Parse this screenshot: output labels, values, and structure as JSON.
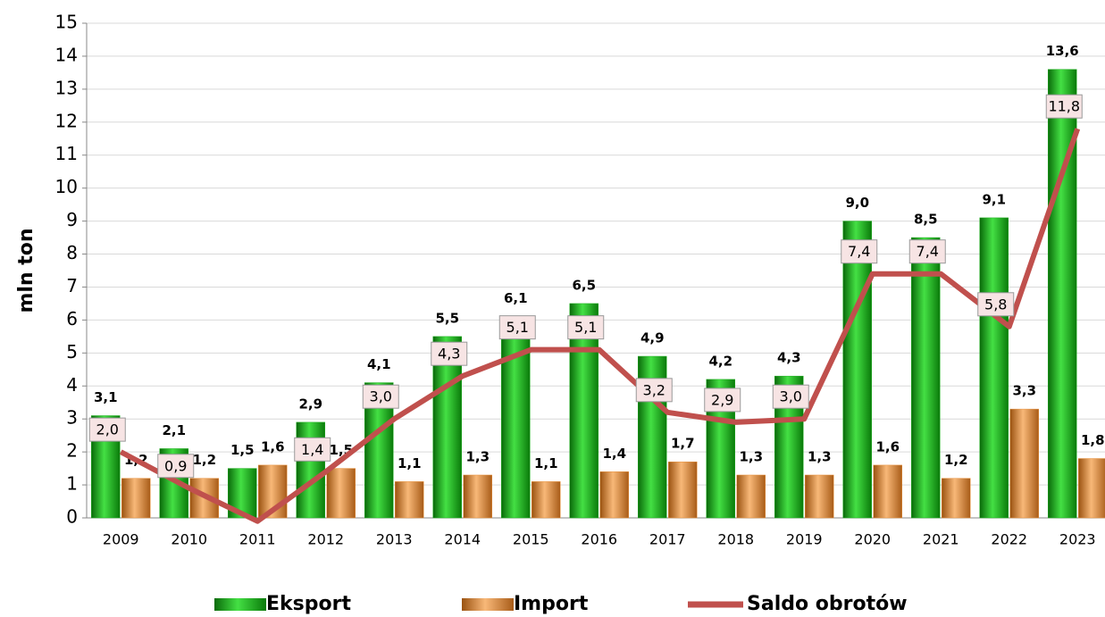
{
  "chart_data": {
    "type": "bar",
    "y_label": "mln ton",
    "categories": [
      "2009",
      "2010",
      "2011",
      "2012",
      "2013",
      "2014",
      "2015",
      "2016",
      "2017",
      "2018",
      "2019",
      "2020",
      "2021",
      "2022",
      "2023"
    ],
    "series": [
      {
        "name": "Eksport",
        "type": "bar",
        "color": "#22b022",
        "values": [
          3.1,
          2.1,
          1.5,
          2.9,
          4.1,
          5.5,
          6.1,
          6.5,
          4.9,
          4.2,
          4.3,
          9.0,
          8.5,
          9.1,
          13.6
        ],
        "value_labels": [
          "3,1",
          "2,1",
          "1,5",
          "2,9",
          "4,1",
          "5,5",
          "6,1",
          "6,5",
          "4,9",
          "4,2",
          "4,3",
          "9,0",
          "8,5",
          "9,1",
          "13,6"
        ]
      },
      {
        "name": "Import",
        "type": "bar",
        "color": "#e8903a",
        "values": [
          1.2,
          1.2,
          1.6,
          1.5,
          1.1,
          1.3,
          1.1,
          1.4,
          1.7,
          1.3,
          1.3,
          1.6,
          1.2,
          3.3,
          1.8
        ],
        "value_labels": [
          "1,2",
          "1,2",
          "1,6",
          "1,5",
          "1,1",
          "1,3",
          "1,1",
          "1,4",
          "1,7",
          "1,3",
          "1,3",
          "1,6",
          "1,2",
          "3,3",
          "1,8"
        ]
      },
      {
        "name": "Saldo obrotów",
        "type": "line",
        "color": "#c0504d",
        "values": [
          2.0,
          0.9,
          -0.1,
          1.4,
          3.0,
          4.3,
          5.1,
          5.1,
          3.2,
          2.9,
          3.0,
          7.4,
          7.4,
          5.8,
          11.8
        ],
        "value_labels": [
          "2,0",
          "0,9",
          null,
          "1,4",
          "3,0",
          "4,3",
          "5,1",
          "5,1",
          "3,2",
          "2,9",
          "3,0",
          "7,4",
          "7,4",
          "5,8",
          "11,8"
        ]
      }
    ],
    "ylim": [
      0,
      15
    ],
    "yticks": [
      0,
      1,
      2,
      3,
      4,
      5,
      6,
      7,
      8,
      9,
      10,
      11,
      12,
      13,
      14,
      15
    ],
    "grid": true,
    "legend": "bottom"
  }
}
